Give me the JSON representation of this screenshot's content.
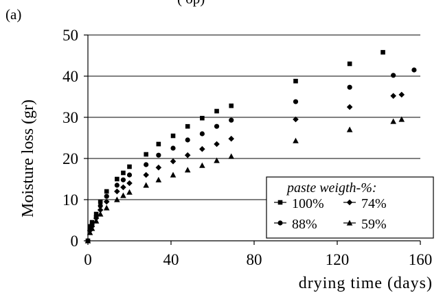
{
  "panel_label": "(a)",
  "top_fragment": "(           op)",
  "chart_data": {
    "type": "scatter",
    "title": "",
    "xlabel": "drying time (days)",
    "ylabel": "Moisture loss (gr)",
    "xlim": [
      0,
      160
    ],
    "ylim": [
      0,
      50
    ],
    "x_ticks": [
      0,
      40,
      80,
      120,
      160
    ],
    "y_ticks": [
      0,
      10,
      20,
      30,
      40,
      50
    ],
    "grid": "horizontal",
    "legend_title": "paste weigth-%:",
    "legend_position": "bottom-right",
    "series": [
      {
        "name": "100%",
        "marker": "square",
        "points": [
          [
            0,
            0
          ],
          [
            1,
            3.5
          ],
          [
            2,
            4.5
          ],
          [
            4,
            6.5
          ],
          [
            6,
            9.5
          ],
          [
            9,
            12
          ],
          [
            14,
            15
          ],
          [
            17,
            16.5
          ],
          [
            20,
            18
          ],
          [
            28,
            21
          ],
          [
            34,
            23.5
          ],
          [
            41,
            25.5
          ],
          [
            48,
            27.8
          ],
          [
            55,
            29.8
          ],
          [
            62,
            31.5
          ],
          [
            69,
            32.8
          ],
          [
            100,
            38.8
          ],
          [
            126,
            43
          ],
          [
            142,
            45.8
          ]
        ]
      },
      {
        "name": "88%",
        "marker": "circle",
        "points": [
          [
            0,
            0
          ],
          [
            1,
            3
          ],
          [
            2,
            4
          ],
          [
            4,
            6
          ],
          [
            6,
            8.5
          ],
          [
            9,
            10.8
          ],
          [
            14,
            13.5
          ],
          [
            17,
            14.8
          ],
          [
            20,
            16
          ],
          [
            28,
            18.5
          ],
          [
            34,
            20.8
          ],
          [
            41,
            22.5
          ],
          [
            48,
            24.5
          ],
          [
            55,
            26
          ],
          [
            62,
            27.8
          ],
          [
            69,
            29.3
          ],
          [
            100,
            33.8
          ],
          [
            126,
            37.3
          ],
          [
            147,
            40.2
          ],
          [
            157,
            41.5
          ]
        ]
      },
      {
        "name": "74%",
        "marker": "diamond",
        "points": [
          [
            0,
            0
          ],
          [
            1,
            2.5
          ],
          [
            2,
            3.5
          ],
          [
            4,
            5.5
          ],
          [
            6,
            7.5
          ],
          [
            9,
            9.5
          ],
          [
            14,
            12
          ],
          [
            17,
            13
          ],
          [
            20,
            14
          ],
          [
            28,
            16
          ],
          [
            34,
            17.8
          ],
          [
            41,
            19.3
          ],
          [
            48,
            20.8
          ],
          [
            55,
            22.3
          ],
          [
            62,
            23.5
          ],
          [
            69,
            24.8
          ],
          [
            100,
            29.5
          ],
          [
            126,
            32.5
          ],
          [
            147,
            35.2
          ],
          [
            151,
            35.5
          ]
        ]
      },
      {
        "name": "59%",
        "marker": "triangle",
        "points": [
          [
            0,
            0
          ],
          [
            1,
            2
          ],
          [
            2,
            3
          ],
          [
            4,
            4.8
          ],
          [
            6,
            6.5
          ],
          [
            9,
            8
          ],
          [
            14,
            10
          ],
          [
            17,
            11
          ],
          [
            20,
            11.8
          ],
          [
            28,
            13.5
          ],
          [
            34,
            14.8
          ],
          [
            41,
            16
          ],
          [
            48,
            17.2
          ],
          [
            55,
            18.3
          ],
          [
            62,
            19.5
          ],
          [
            69,
            20.5
          ],
          [
            100,
            24.3
          ],
          [
            126,
            27
          ],
          [
            147,
            29
          ],
          [
            151,
            29.5
          ]
        ]
      }
    ]
  }
}
